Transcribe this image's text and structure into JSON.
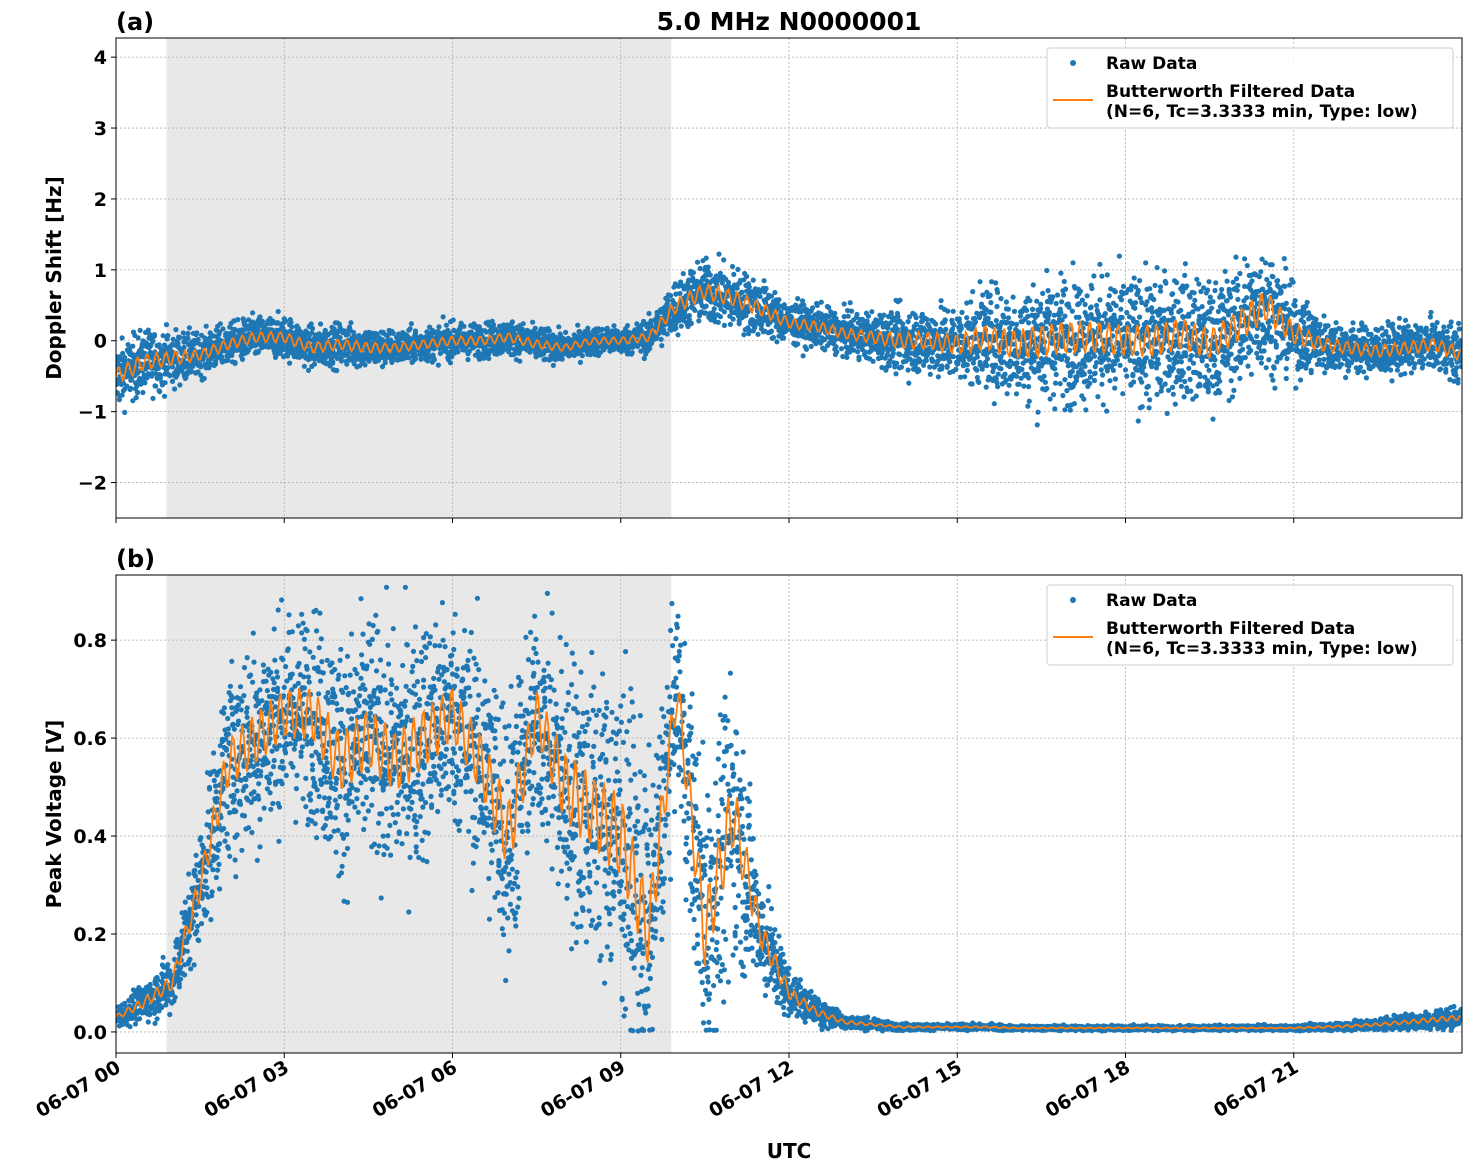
{
  "chart_data": [
    {
      "type": "scatter",
      "panel_label": "(a)",
      "title": "5.0 MHz N0000001",
      "xlabel": "",
      "ylabel": "Doppler Shift [Hz]",
      "xlim_hours_utc": [
        0,
        24
      ],
      "ylim": [
        -2.5,
        4.27
      ],
      "yticks": [
        -2,
        -1,
        0,
        1,
        2,
        3,
        4
      ],
      "ytick_labels": [
        "−2",
        "−1",
        "0",
        "1",
        "2",
        "3",
        "4"
      ],
      "grid": true,
      "legend_placement": "top-right",
      "legend": [
        "Raw Data",
        "Butterworth Filtered Data",
        "(N=6, Tc=3.3333 min, Type: low)"
      ],
      "shaded_interval_hours_utc": [
        0.9,
        9.9
      ],
      "filtered_x_hours": [
        0,
        0.5,
        1,
        1.5,
        2,
        2.5,
        3,
        3.5,
        4,
        4.5,
        5,
        5.5,
        6,
        6.5,
        7,
        7.5,
        8,
        8.5,
        9,
        9.5,
        10,
        10.5,
        11,
        11.5,
        12,
        12.5,
        13,
        13.5,
        14,
        14.5,
        15,
        15.5,
        16,
        16.5,
        17,
        17.5,
        18,
        18.5,
        19,
        19.5,
        20,
        20.5,
        21,
        21.5,
        22,
        22.5,
        23,
        23.5,
        24
      ],
      "filtered_values": [
        -0.5,
        -0.3,
        -0.25,
        -0.2,
        -0.05,
        0.05,
        0.05,
        -0.1,
        -0.05,
        -0.1,
        -0.1,
        -0.05,
        0.0,
        0.0,
        0.05,
        -0.05,
        -0.1,
        0.0,
        0.0,
        0.05,
        0.5,
        0.7,
        0.6,
        0.45,
        0.25,
        0.2,
        0.1,
        0.05,
        0.0,
        0.0,
        -0.05,
        0.05,
        -0.05,
        0.0,
        0.05,
        0.05,
        0.0,
        0.0,
        0.1,
        -0.05,
        0.2,
        0.5,
        0.1,
        -0.05,
        -0.1,
        -0.15,
        -0.1,
        -0.05,
        -0.2
      ],
      "raw_spread": [
        0.45,
        0.45,
        0.4,
        0.3,
        0.3,
        0.3,
        0.3,
        0.3,
        0.3,
        0.3,
        0.25,
        0.25,
        0.25,
        0.25,
        0.25,
        0.25,
        0.2,
        0.2,
        0.2,
        0.25,
        0.4,
        0.45,
        0.45,
        0.4,
        0.3,
        0.3,
        0.3,
        0.35,
        0.45,
        0.5,
        0.55,
        0.7,
        0.8,
        0.9,
        0.9,
        0.9,
        0.9,
        0.9,
        0.9,
        0.85,
        0.9,
        0.9,
        0.6,
        0.4,
        0.35,
        0.35,
        0.35,
        0.35,
        0.4
      ]
    },
    {
      "type": "scatter",
      "panel_label": "(b)",
      "title": "",
      "xlabel": "UTC",
      "ylabel": "Peak Voltage [V]",
      "xlim_hours_utc": [
        0,
        24
      ],
      "ylim": [
        -0.043,
        0.933
      ],
      "yticks": [
        0.0,
        0.2,
        0.4,
        0.6,
        0.8
      ],
      "ytick_labels": [
        "0.0",
        "0.2",
        "0.4",
        "0.6",
        "0.8"
      ],
      "xticks_hours": [
        0,
        3,
        6,
        9,
        12,
        15,
        18,
        21
      ],
      "xtick_labels": [
        "06-07 00",
        "06-07 03",
        "06-07 06",
        "06-07 09",
        "06-07 12",
        "06-07 15",
        "06-07 18",
        "06-07 21"
      ],
      "grid": true,
      "legend_placement": "top-right",
      "legend": [
        "Raw Data",
        "Butterworth Filtered Data",
        "(N=6, Tc=3.3333 min, Type: low)"
      ],
      "shaded_interval_hours_utc": [
        0.9,
        9.9
      ],
      "filtered_x_hours": [
        0,
        0.5,
        1,
        1.5,
        2,
        2.5,
        3,
        3.5,
        4,
        4.5,
        5,
        5.5,
        6,
        6.5,
        7,
        7.5,
        8,
        8.5,
        9,
        9.5,
        10,
        10.5,
        11,
        11.5,
        12,
        12.5,
        13,
        13.5,
        14,
        14.5,
        15,
        15.5,
        16,
        16.5,
        17,
        17.5,
        18,
        18.5,
        19,
        19.5,
        20,
        20.5,
        21,
        21.5,
        22,
        22.5,
        23,
        23.5,
        24
      ],
      "filtered_values": [
        0.03,
        0.06,
        0.1,
        0.3,
        0.55,
        0.6,
        0.65,
        0.65,
        0.55,
        0.6,
        0.55,
        0.6,
        0.65,
        0.55,
        0.4,
        0.65,
        0.5,
        0.45,
        0.4,
        0.2,
        0.7,
        0.2,
        0.45,
        0.2,
        0.08,
        0.04,
        0.02,
        0.015,
        0.01,
        0.01,
        0.01,
        0.01,
        0.008,
        0.008,
        0.008,
        0.008,
        0.008,
        0.008,
        0.008,
        0.008,
        0.008,
        0.008,
        0.008,
        0.01,
        0.012,
        0.015,
        0.02,
        0.025,
        0.03
      ],
      "raw_spread": [
        0.02,
        0.04,
        0.06,
        0.12,
        0.2,
        0.22,
        0.2,
        0.22,
        0.25,
        0.25,
        0.25,
        0.25,
        0.22,
        0.25,
        0.3,
        0.2,
        0.3,
        0.3,
        0.35,
        0.3,
        0.18,
        0.3,
        0.3,
        0.12,
        0.05,
        0.03,
        0.015,
        0.01,
        0.008,
        0.006,
        0.006,
        0.006,
        0.005,
        0.005,
        0.005,
        0.005,
        0.005,
        0.005,
        0.005,
        0.005,
        0.005,
        0.005,
        0.005,
        0.008,
        0.01,
        0.012,
        0.015,
        0.02,
        0.02
      ]
    }
  ],
  "colors": {
    "raw": "#1f77b4",
    "filtered": "#ff7f0e",
    "shade": "#e8e8e8",
    "grid": "#b0b0b0"
  }
}
